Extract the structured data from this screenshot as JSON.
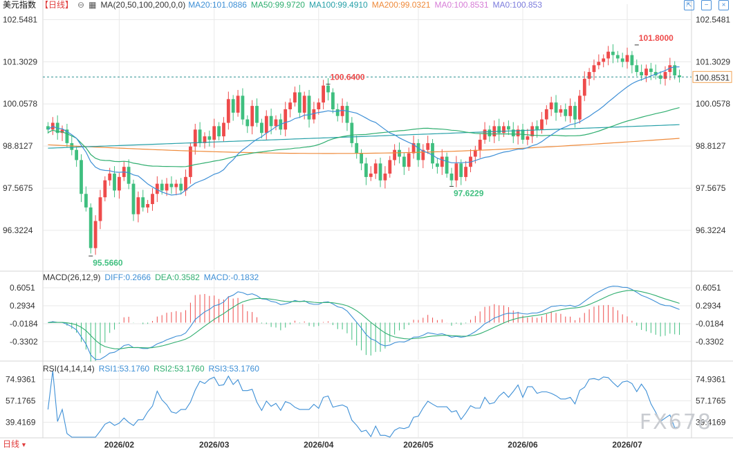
{
  "symbol": "美元指数",
  "period": "【日线】",
  "period_bottom": "日线",
  "watermark": "FX678",
  "colors": {
    "up": "#ee4b4b",
    "down": "#3fbf7f",
    "ma20": "#3d8fd6",
    "ma50": "#2fae6f",
    "ma100": "#26a0a8",
    "ma200": "#ef8a3a",
    "last_line": "#2a8f8f",
    "grid": "#e8e8e8"
  },
  "legends": {
    "ma": {
      "label": "MA(20,50,100,200,0,0)",
      "ma20": "MA20:101.0886",
      "ma50": "MA50:99.9720",
      "ma100": "MA100:99.4910",
      "ma200": "MA200:99.0321",
      "ma_a": "MA0:100.8531",
      "ma_b": "MA0:100.853"
    },
    "macd": {
      "label": "MACD(26,12,9)",
      "diff": "DIFF:0.2666",
      "dea": "DEA:0.3582",
      "macd": "MACD:-0.1832"
    },
    "rsi": {
      "label": "RSI(14,14,14)",
      "rsi1": "RSI1:53.1760",
      "rsi2": "RSI2:53.1760",
      "rsi3": "RSI3:53.1760"
    }
  },
  "chart_data": [
    {
      "type": "candlestick",
      "name": "price",
      "y_ticks": [
        102.5481,
        101.3029,
        100.0578,
        98.8127,
        97.5675,
        96.3224
      ],
      "ylim": [
        95.2,
        102.8
      ],
      "last_value": 100.8531,
      "annotations": [
        {
          "label": "101.8000",
          "x_index": 124,
          "value": 101.8,
          "position": "above"
        },
        {
          "label": "100.6400",
          "x_index": 59,
          "value": 100.64,
          "position": "above"
        },
        {
          "label": "97.6229",
          "x_index": 85,
          "value": 97.6229,
          "position": "below"
        },
        {
          "label": "95.5660",
          "x_index": 9,
          "value": 95.566,
          "position": "below"
        }
      ],
      "x_labels": [
        {
          "label": "2026/02",
          "x_index": 15
        },
        {
          "label": "2026/03",
          "x_index": 35
        },
        {
          "label": "2026/04",
          "x_index": 57
        },
        {
          "label": "2026/05",
          "x_index": 78
        },
        {
          "label": "2026/06",
          "x_index": 100
        },
        {
          "label": "2026/07",
          "x_index": 122
        }
      ],
      "closes": [
        99.3,
        99.5,
        99.2,
        99.3,
        98.9,
        98.7,
        98.4,
        97.4,
        97.0,
        95.8,
        96.6,
        97.3,
        97.8,
        98.0,
        97.5,
        97.9,
        98.2,
        97.7,
        96.8,
        97.3,
        97.0,
        97.1,
        97.4,
        97.7,
        97.5,
        97.7,
        97.6,
        97.7,
        97.5,
        97.9,
        98.8,
        99.3,
        98.9,
        99.1,
        99.0,
        99.4,
        99.1,
        99.5,
        100.2,
        99.8,
        100.3,
        99.6,
        99.4,
        100.0,
        99.5,
        99.2,
        99.7,
        99.4,
        99.6,
        99.3,
        99.9,
        100.1,
        100.4,
        99.8,
        100.3,
        99.6,
        99.9,
        100.1,
        100.6,
        100.4,
        99.9,
        99.7,
        100.0,
        99.5,
        98.9,
        98.6,
        98.3,
        97.9,
        98.0,
        98.3,
        97.8,
        98.0,
        98.4,
        98.7,
        98.5,
        98.2,
        98.6,
        98.9,
        98.4,
        98.7,
        98.9,
        98.3,
        98.2,
        98.5,
        98.0,
        97.8,
        98.3,
        97.9,
        98.2,
        98.5,
        98.7,
        99.0,
        99.3,
        99.1,
        99.4,
        99.2,
        99.4,
        99.3,
        99.1,
        99.3,
        99.0,
        99.1,
        99.4,
        99.3,
        99.6,
        99.9,
        100.1,
        99.8,
        99.9,
        99.7,
        100.0,
        99.6,
        100.3,
        100.8,
        101.0,
        101.2,
        101.3,
        101.4,
        101.6,
        101.5,
        101.4,
        101.3,
        101.5,
        101.2,
        101.0,
        100.9,
        101.1,
        101.0,
        100.9,
        100.8,
        101.0,
        101.2,
        100.9,
        100.85
      ]
    },
    {
      "type": "macd",
      "name": "MACD",
      "y_ticks": [
        0.6051,
        0.2934,
        -0.0184,
        -0.3302
      ],
      "ylim": [
        -0.62,
        0.75
      ]
    },
    {
      "type": "line",
      "name": "RSI",
      "y_ticks": [
        74.9361,
        57.1765,
        39.4169
      ],
      "ylim": [
        27,
        82
      ]
    }
  ]
}
